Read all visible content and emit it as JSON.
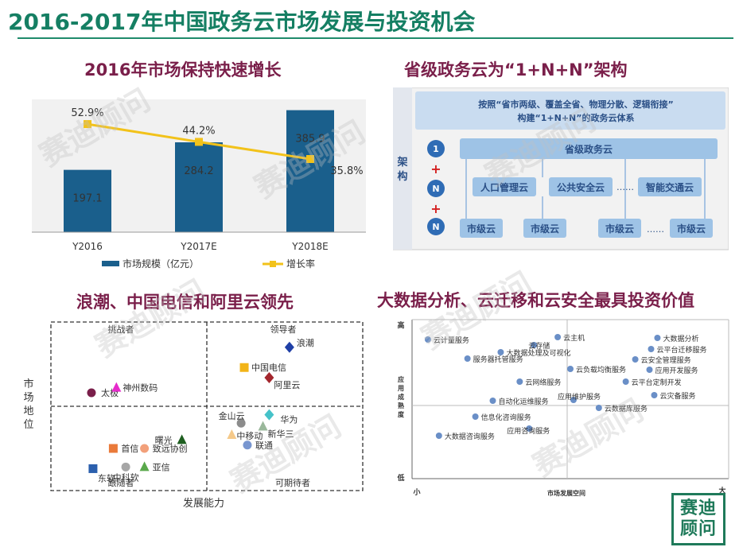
{
  "page": {
    "title": "2016-2017年中国政务云市场发展与投资机会",
    "watermark": "赛迪顾问",
    "logo": "赛迪顾问"
  },
  "sections": {
    "tl_title": "2016年市场保持快速增长",
    "tr_title": "省级政务云为“1+N+N”架构",
    "bl_title": "浪潮、中国电信和阿里云领先",
    "br_title": "大数据分析、云迁移和云安全最具投资价值"
  },
  "chart_data": [
    {
      "type": "bar",
      "title": "2016年市场保持快速增长",
      "categories": [
        "Y2016",
        "Y2017E",
        "Y2018E"
      ],
      "series": [
        {
          "name": "市场规模（亿元）",
          "type": "bar",
          "values": [
            197.1,
            284.2,
            385.9
          ],
          "labels": [
            "197.1",
            "284.2",
            "385.9"
          ],
          "color": "#1a5f8c"
        },
        {
          "name": "增长率",
          "type": "line",
          "values": [
            52.9,
            44.2,
            35.8
          ],
          "labels": [
            "52.9%",
            "44.2%",
            "35.8%"
          ],
          "color": "#f2c21a"
        }
      ],
      "ylim": [
        0,
        420
      ],
      "y2lim": [
        0,
        65
      ],
      "legend": "bottom",
      "grid": false
    },
    {
      "type": "scatter",
      "title": "浪潮、中国电信和阿里云领先",
      "xlabel": "发展能力",
      "ylabel": "市场地位",
      "quadrants": {
        "top_left": "挑战者",
        "top_right": "领导者",
        "bottom_left": "跟随者",
        "bottom_right": "可期待者"
      },
      "xlim": [
        0,
        10
      ],
      "ylim": [
        0,
        10
      ],
      "points": [
        {
          "name": "浪潮",
          "x": 7.65,
          "y": 8.5,
          "shape": "diamond",
          "color": "#1f3fa6"
        },
        {
          "name": "中国电信",
          "x": 6.2,
          "y": 7.3,
          "shape": "square",
          "color": "#f2b418"
        },
        {
          "name": "阿里云",
          "x": 7.0,
          "y": 6.7,
          "shape": "diamond",
          "color": "#a3262d"
        },
        {
          "name": "太极",
          "x": 1.3,
          "y": 5.8,
          "shape": "circle",
          "color": "#7a1f4a"
        },
        {
          "name": "神州数码",
          "x": 2.1,
          "y": 6.1,
          "shape": "triangle",
          "color": "#e62acb"
        },
        {
          "name": "华为",
          "x": 7.0,
          "y": 4.5,
          "shape": "diamond",
          "color": "#45c2c9"
        },
        {
          "name": "新华三",
          "x": 6.8,
          "y": 3.8,
          "shape": "triangle",
          "color": "#9ab89b"
        },
        {
          "name": "金山云",
          "x": 6.1,
          "y": 4.0,
          "shape": "circle",
          "color": "#8c8c8c"
        },
        {
          "name": "中移动",
          "x": 5.8,
          "y": 3.3,
          "shape": "triangle",
          "color": "#f5c98a"
        },
        {
          "name": "曙光",
          "x": 4.2,
          "y": 3.0,
          "shape": "triangle",
          "color": "#1e5e20"
        },
        {
          "name": "联通",
          "x": 6.3,
          "y": 2.7,
          "shape": "circle",
          "color": "#7896d0"
        },
        {
          "name": "首信",
          "x": 2.0,
          "y": 2.5,
          "shape": "square",
          "color": "#ea7a3a"
        },
        {
          "name": "致远协创",
          "x": 3.0,
          "y": 2.5,
          "shape": "circle",
          "color": "#f2a07a"
        },
        {
          "name": "亚信",
          "x": 3.0,
          "y": 1.4,
          "shape": "triangle",
          "color": "#5aa84b"
        },
        {
          "name": "中科软",
          "x": 2.4,
          "y": 1.4,
          "shape": "circle",
          "color": "#a6a6a6"
        },
        {
          "name": "东软",
          "x": 1.35,
          "y": 1.3,
          "shape": "square",
          "color": "#2b5fad"
        }
      ]
    },
    {
      "type": "scatter",
      "title": "大数据分析、云迁移和云安全最具投资价值",
      "xlabel": "市场发展空间",
      "ylabel": "应用成熟度",
      "x_ticks": {
        "low": "小",
        "high": "大"
      },
      "y_ticks": {
        "low": "低",
        "high": "高"
      },
      "xlim": [
        0,
        10
      ],
      "ylim": [
        0,
        10
      ],
      "point_color": "#6a8fc7",
      "points": [
        {
          "name": "云计量服务",
          "x": 0.5,
          "y": 8.75
        },
        {
          "name": "云主机",
          "x": 4.6,
          "y": 8.9
        },
        {
          "name": "大数据分析",
          "x": 7.75,
          "y": 8.85
        },
        {
          "name": "云存储",
          "x": 3.85,
          "y": 8.4
        },
        {
          "name": "云平台迁移服务",
          "x": 7.55,
          "y": 8.15
        },
        {
          "name": "大数据处理及可视化",
          "x": 2.8,
          "y": 7.95
        },
        {
          "name": "服务器托管服务",
          "x": 1.75,
          "y": 7.55
        },
        {
          "name": "云安全管理服务",
          "x": 7.05,
          "y": 7.5
        },
        {
          "name": "云负载均衡服务",
          "x": 5.0,
          "y": 6.9
        },
        {
          "name": "应用开发服务",
          "x": 7.5,
          "y": 6.85
        },
        {
          "name": "云网络服务",
          "x": 3.4,
          "y": 6.1
        },
        {
          "name": "云平台定制开发",
          "x": 6.75,
          "y": 6.1
        },
        {
          "name": "云灾备服务",
          "x": 7.65,
          "y": 5.25
        },
        {
          "name": "自动化运维服务",
          "x": 2.55,
          "y": 4.9
        },
        {
          "name": "应用维护服务",
          "x": 5.1,
          "y": 4.95
        },
        {
          "name": "云数据库服务",
          "x": 5.9,
          "y": 4.45
        },
        {
          "name": "信息化咨询服务",
          "x": 2.0,
          "y": 3.9
        },
        {
          "name": "应用咨询服务",
          "x": 3.7,
          "y": 3.15
        },
        {
          "name": "大数据咨询服务",
          "x": 0.85,
          "y": 2.7
        }
      ]
    }
  ],
  "architecture": {
    "side_label": "架构",
    "header_line1": "按照“省市两级、覆盖全省、物理分散、逻辑衔接”",
    "header_line2": "构建“1+N+N”的政务云体系",
    "levels": [
      "1",
      "N",
      "N"
    ],
    "plus_sign": "+",
    "top_box": "省级政务云",
    "mid_boxes": [
      "人口管理云",
      "公共安全云",
      "……",
      "智能交通云"
    ],
    "bottom_boxes": [
      "市级云",
      "市级云",
      "市级云",
      "……",
      "市级云"
    ]
  },
  "colors": {
    "title_green": "#157f63",
    "section_title": "#7a1f4a",
    "arch_blue": "#9ec3e6",
    "arch_text": "#2a4f86",
    "arch_circle": "#2f6cb5"
  }
}
